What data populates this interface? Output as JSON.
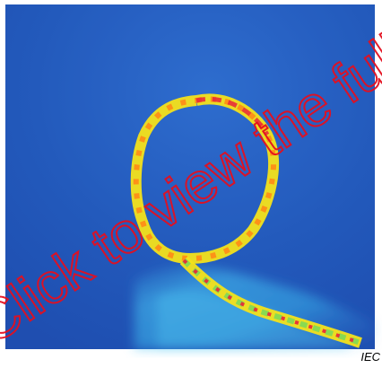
{
  "figure": {
    "source_label": "IEC",
    "watermark_text": "Click to view the full PDF",
    "colors": {
      "background_low": "#1f4fb3",
      "background_mid": "#2f6fd1",
      "plume": "#39bff0",
      "ring_green": "#7ed957",
      "ring_yellow": "#f4e21a",
      "ring_orange": "#ff8a16",
      "ring_red": "#e8233a",
      "watermark": "#e40f1f"
    }
  }
}
